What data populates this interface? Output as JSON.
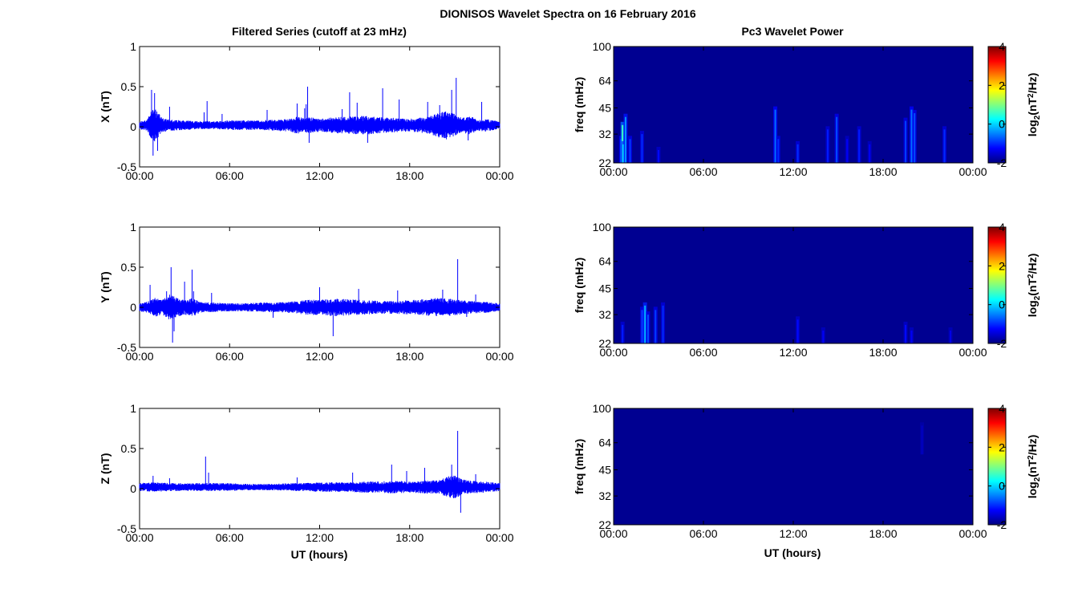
{
  "figure": {
    "suptitle": "DIONISOS Wavelet Spectra on 16 February 2016",
    "left_title": "Filtered Series (cutoff at 23 mHz)",
    "right_title": "Pc3 Wavelet Power",
    "xlabel": "UT (hours)"
  },
  "colors": {
    "trace": "#0000ff",
    "spectrogram_bg": "#00008f",
    "axis": "#000000"
  },
  "chart_data": [
    {
      "type": "line",
      "component": "X",
      "ylabel": "X (nT)",
      "xlim": [
        0,
        24
      ],
      "ylim": [
        -0.5,
        1
      ],
      "x_ticks": [
        "00:00",
        "06:00",
        "12:00",
        "18:00",
        "00:00"
      ],
      "y_ticks": [
        "-0.5",
        "0",
        "0.5",
        "1"
      ],
      "baseline": 0.02,
      "envelope_hours": [
        0,
        0.5,
        0.8,
        1.0,
        1.2,
        1.5,
        2.0,
        3.0,
        4.0,
        5.0,
        6.0,
        7.0,
        8.0,
        9.0,
        10.0,
        10.5,
        11.0,
        11.5,
        12.0,
        13.0,
        14.0,
        15.0,
        16.0,
        17.0,
        18.0,
        19.0,
        19.5,
        20.0,
        20.5,
        21.0,
        21.5,
        22.0,
        22.5,
        23.0,
        24.0
      ],
      "envelope_amp": [
        0.05,
        0.07,
        0.18,
        0.22,
        0.17,
        0.09,
        0.07,
        0.06,
        0.05,
        0.05,
        0.06,
        0.06,
        0.06,
        0.07,
        0.08,
        0.11,
        0.09,
        0.1,
        0.08,
        0.1,
        0.11,
        0.12,
        0.1,
        0.09,
        0.08,
        0.1,
        0.12,
        0.16,
        0.18,
        0.14,
        0.09,
        0.12,
        0.07,
        0.08,
        0.05
      ],
      "spikes": [
        [
          0.8,
          0.46
        ],
        [
          0.9,
          -0.36
        ],
        [
          1.0,
          0.42
        ],
        [
          1.2,
          -0.3
        ],
        [
          2.0,
          0.25
        ],
        [
          4.3,
          0.18
        ],
        [
          4.5,
          0.32
        ],
        [
          5.5,
          0.16
        ],
        [
          8.5,
          0.21
        ],
        [
          10.5,
          0.29
        ],
        [
          11.0,
          0.23
        ],
        [
          11.1,
          0.28
        ],
        [
          11.2,
          0.5
        ],
        [
          11.3,
          -0.2
        ],
        [
          13.5,
          0.22
        ],
        [
          14.0,
          0.43
        ],
        [
          14.5,
          0.3
        ],
        [
          15.2,
          -0.2
        ],
        [
          16.2,
          0.48
        ],
        [
          17.3,
          0.34
        ],
        [
          19.2,
          0.31
        ],
        [
          20.0,
          0.27
        ],
        [
          20.8,
          0.46
        ],
        [
          21.1,
          0.61
        ],
        [
          21.9,
          -0.17
        ],
        [
          22.8,
          0.31
        ]
      ],
      "envelope_note": ""
    },
    {
      "type": "line",
      "component": "Y",
      "ylabel": "Y (nT)",
      "xlim": [
        0,
        24
      ],
      "ylim": [
        -0.5,
        1
      ],
      "x_ticks": [
        "00:00",
        "06:00",
        "12:00",
        "18:00",
        "00:00"
      ],
      "y_ticks": [
        "-0.5",
        "0",
        "0.5",
        "1"
      ],
      "baseline": 0.0,
      "envelope_hours": [
        0,
        0.5,
        1.0,
        1.5,
        2.0,
        2.5,
        3.0,
        3.5,
        4.0,
        5.0,
        6.0,
        7.0,
        8.0,
        9.0,
        10.0,
        11.0,
        12.0,
        13.0,
        14.0,
        15.0,
        16.0,
        17.0,
        18.0,
        19.0,
        20.0,
        20.5,
        21.0,
        22.0,
        23.0,
        24.0
      ],
      "envelope_amp": [
        0.05,
        0.07,
        0.12,
        0.09,
        0.16,
        0.12,
        0.09,
        0.12,
        0.07,
        0.06,
        0.05,
        0.05,
        0.06,
        0.06,
        0.07,
        0.09,
        0.1,
        0.11,
        0.1,
        0.09,
        0.08,
        0.08,
        0.09,
        0.1,
        0.12,
        0.11,
        0.1,
        0.08,
        0.07,
        0.05
      ],
      "spikes": [
        [
          0.7,
          0.28
        ],
        [
          1.8,
          0.2
        ],
        [
          2.1,
          0.5
        ],
        [
          2.2,
          -0.44
        ],
        [
          2.3,
          -0.3
        ],
        [
          3.0,
          0.32
        ],
        [
          3.5,
          0.47
        ],
        [
          3.6,
          0.2
        ],
        [
          4.8,
          0.18
        ],
        [
          8.9,
          -0.13
        ],
        [
          12.0,
          0.25
        ],
        [
          12.9,
          -0.36
        ],
        [
          14.6,
          0.23
        ],
        [
          17.2,
          0.21
        ],
        [
          20.2,
          0.22
        ],
        [
          21.2,
          0.6
        ],
        [
          21.8,
          -0.12
        ],
        [
          22.4,
          0.16
        ]
      ],
      "envelope_note": ""
    },
    {
      "type": "line",
      "component": "Z",
      "ylabel": "Z (nT)",
      "xlim": [
        0,
        24
      ],
      "ylim": [
        -0.5,
        1
      ],
      "x_ticks": [
        "00:00",
        "06:00",
        "12:00",
        "18:00",
        "00:00"
      ],
      "y_ticks": [
        "-0.5",
        "0",
        "0.5",
        "1"
      ],
      "baseline": 0.02,
      "envelope_hours": [
        0,
        1.0,
        2.0,
        3.0,
        4.0,
        5.0,
        6.0,
        7.0,
        8.0,
        9.0,
        10.0,
        11.0,
        12.0,
        13.0,
        14.0,
        15.0,
        16.0,
        17.0,
        18.0,
        19.0,
        20.0,
        20.5,
        21.0,
        21.5,
        22.0,
        23.0,
        24.0
      ],
      "envelope_amp": [
        0.05,
        0.06,
        0.05,
        0.05,
        0.05,
        0.05,
        0.05,
        0.04,
        0.04,
        0.04,
        0.05,
        0.05,
        0.06,
        0.06,
        0.06,
        0.07,
        0.07,
        0.08,
        0.07,
        0.08,
        0.09,
        0.13,
        0.15,
        0.1,
        0.08,
        0.07,
        0.05
      ],
      "spikes": [
        [
          0.9,
          0.16
        ],
        [
          2.0,
          0.13
        ],
        [
          4.4,
          0.4
        ],
        [
          4.6,
          0.2
        ],
        [
          10.5,
          0.14
        ],
        [
          14.2,
          0.2
        ],
        [
          16.8,
          0.3
        ],
        [
          17.8,
          0.22
        ],
        [
          19.0,
          0.26
        ],
        [
          20.8,
          0.3
        ],
        [
          21.2,
          0.72
        ],
        [
          21.4,
          -0.3
        ],
        [
          22.4,
          0.18
        ]
      ],
      "envelope_note": ""
    },
    {
      "type": "heatmap",
      "component": "X",
      "ylabel": "freq (mHz)",
      "colorbar_label": "log₂(nT²/Hz)",
      "colorbar_label_parts": [
        "log",
        "2",
        "(nT",
        "2",
        "/Hz)"
      ],
      "xlim": [
        0,
        24
      ],
      "ylim": [
        22,
        100
      ],
      "yscale": "log",
      "clim": [
        -2,
        4
      ],
      "x_ticks": [
        "00:00",
        "06:00",
        "12:00",
        "18:00",
        "00:00"
      ],
      "y_ticks": [
        "22",
        "32",
        "45",
        "64",
        "100"
      ],
      "colorbar_ticks": [
        "-2",
        "0",
        "2",
        "4"
      ],
      "background_level": -1.9,
      "streaks": [
        [
          0.5,
          22,
          30,
          -0.6
        ],
        [
          0.6,
          22,
          36,
          0.6
        ],
        [
          0.65,
          22,
          28,
          0.2
        ],
        [
          0.8,
          22,
          40,
          -0.4
        ],
        [
          1.1,
          22,
          30,
          -0.9
        ],
        [
          1.9,
          22,
          32,
          -1.0
        ],
        [
          3.0,
          22,
          26,
          -1.2
        ],
        [
          10.8,
          22,
          44,
          -0.6
        ],
        [
          11.0,
          22,
          30,
          -1.0
        ],
        [
          12.3,
          22,
          28,
          -1.0
        ],
        [
          14.3,
          22,
          34,
          -1.1
        ],
        [
          14.9,
          22,
          40,
          -0.8
        ],
        [
          15.6,
          22,
          30,
          -1.3
        ],
        [
          16.4,
          22,
          34,
          -1.1
        ],
        [
          17.1,
          22,
          28,
          -1.3
        ],
        [
          19.5,
          22,
          38,
          -0.9
        ],
        [
          19.9,
          22,
          44,
          -0.6
        ],
        [
          20.1,
          22,
          42,
          -0.8
        ],
        [
          22.1,
          22,
          34,
          -1.0
        ]
      ]
    },
    {
      "type": "heatmap",
      "component": "Y",
      "ylabel": "freq (mHz)",
      "colorbar_label": "log₂(nT²/Hz)",
      "colorbar_label_parts": [
        "log",
        "2",
        "(nT",
        "2",
        "/Hz)"
      ],
      "xlim": [
        0,
        24
      ],
      "ylim": [
        22,
        100
      ],
      "yscale": "log",
      "clim": [
        -2,
        4
      ],
      "x_ticks": [
        "00:00",
        "06:00",
        "12:00",
        "18:00",
        "00:00"
      ],
      "y_ticks": [
        "22",
        "32",
        "45",
        "64",
        "100"
      ],
      "colorbar_ticks": [
        "-2",
        "0",
        "2",
        "4"
      ],
      "background_level": -1.9,
      "streaks": [
        [
          0.6,
          22,
          28,
          -1.1
        ],
        [
          1.9,
          22,
          34,
          -0.9
        ],
        [
          2.1,
          22,
          36,
          -0.2
        ],
        [
          2.3,
          22,
          32,
          -0.8
        ],
        [
          2.8,
          22,
          34,
          -0.9
        ],
        [
          3.3,
          22,
          36,
          -1.0
        ],
        [
          12.3,
          22,
          30,
          -1.2
        ],
        [
          14.0,
          22,
          26,
          -1.3
        ],
        [
          19.5,
          22,
          28,
          -1.2
        ],
        [
          19.9,
          22,
          26,
          -1.3
        ],
        [
          22.5,
          22,
          26,
          -1.4
        ]
      ]
    },
    {
      "type": "heatmap",
      "component": "Z",
      "ylabel": "freq (mHz)",
      "colorbar_label": "log₂(nT²/Hz)",
      "colorbar_label_parts": [
        "log",
        "2",
        "(nT",
        "2",
        "/Hz)"
      ],
      "xlim": [
        0,
        24
      ],
      "ylim": [
        22,
        100
      ],
      "yscale": "log",
      "clim": [
        -2,
        4
      ],
      "x_ticks": [
        "00:00",
        "06:00",
        "12:00",
        "18:00",
        "00:00"
      ],
      "y_ticks": [
        "22",
        "32",
        "45",
        "64",
        "100"
      ],
      "colorbar_ticks": [
        "-2",
        "0",
        "2",
        "4"
      ],
      "background_level": -1.9,
      "streaks": [
        [
          20.6,
          55,
          80,
          -1.6
        ]
      ]
    }
  ]
}
